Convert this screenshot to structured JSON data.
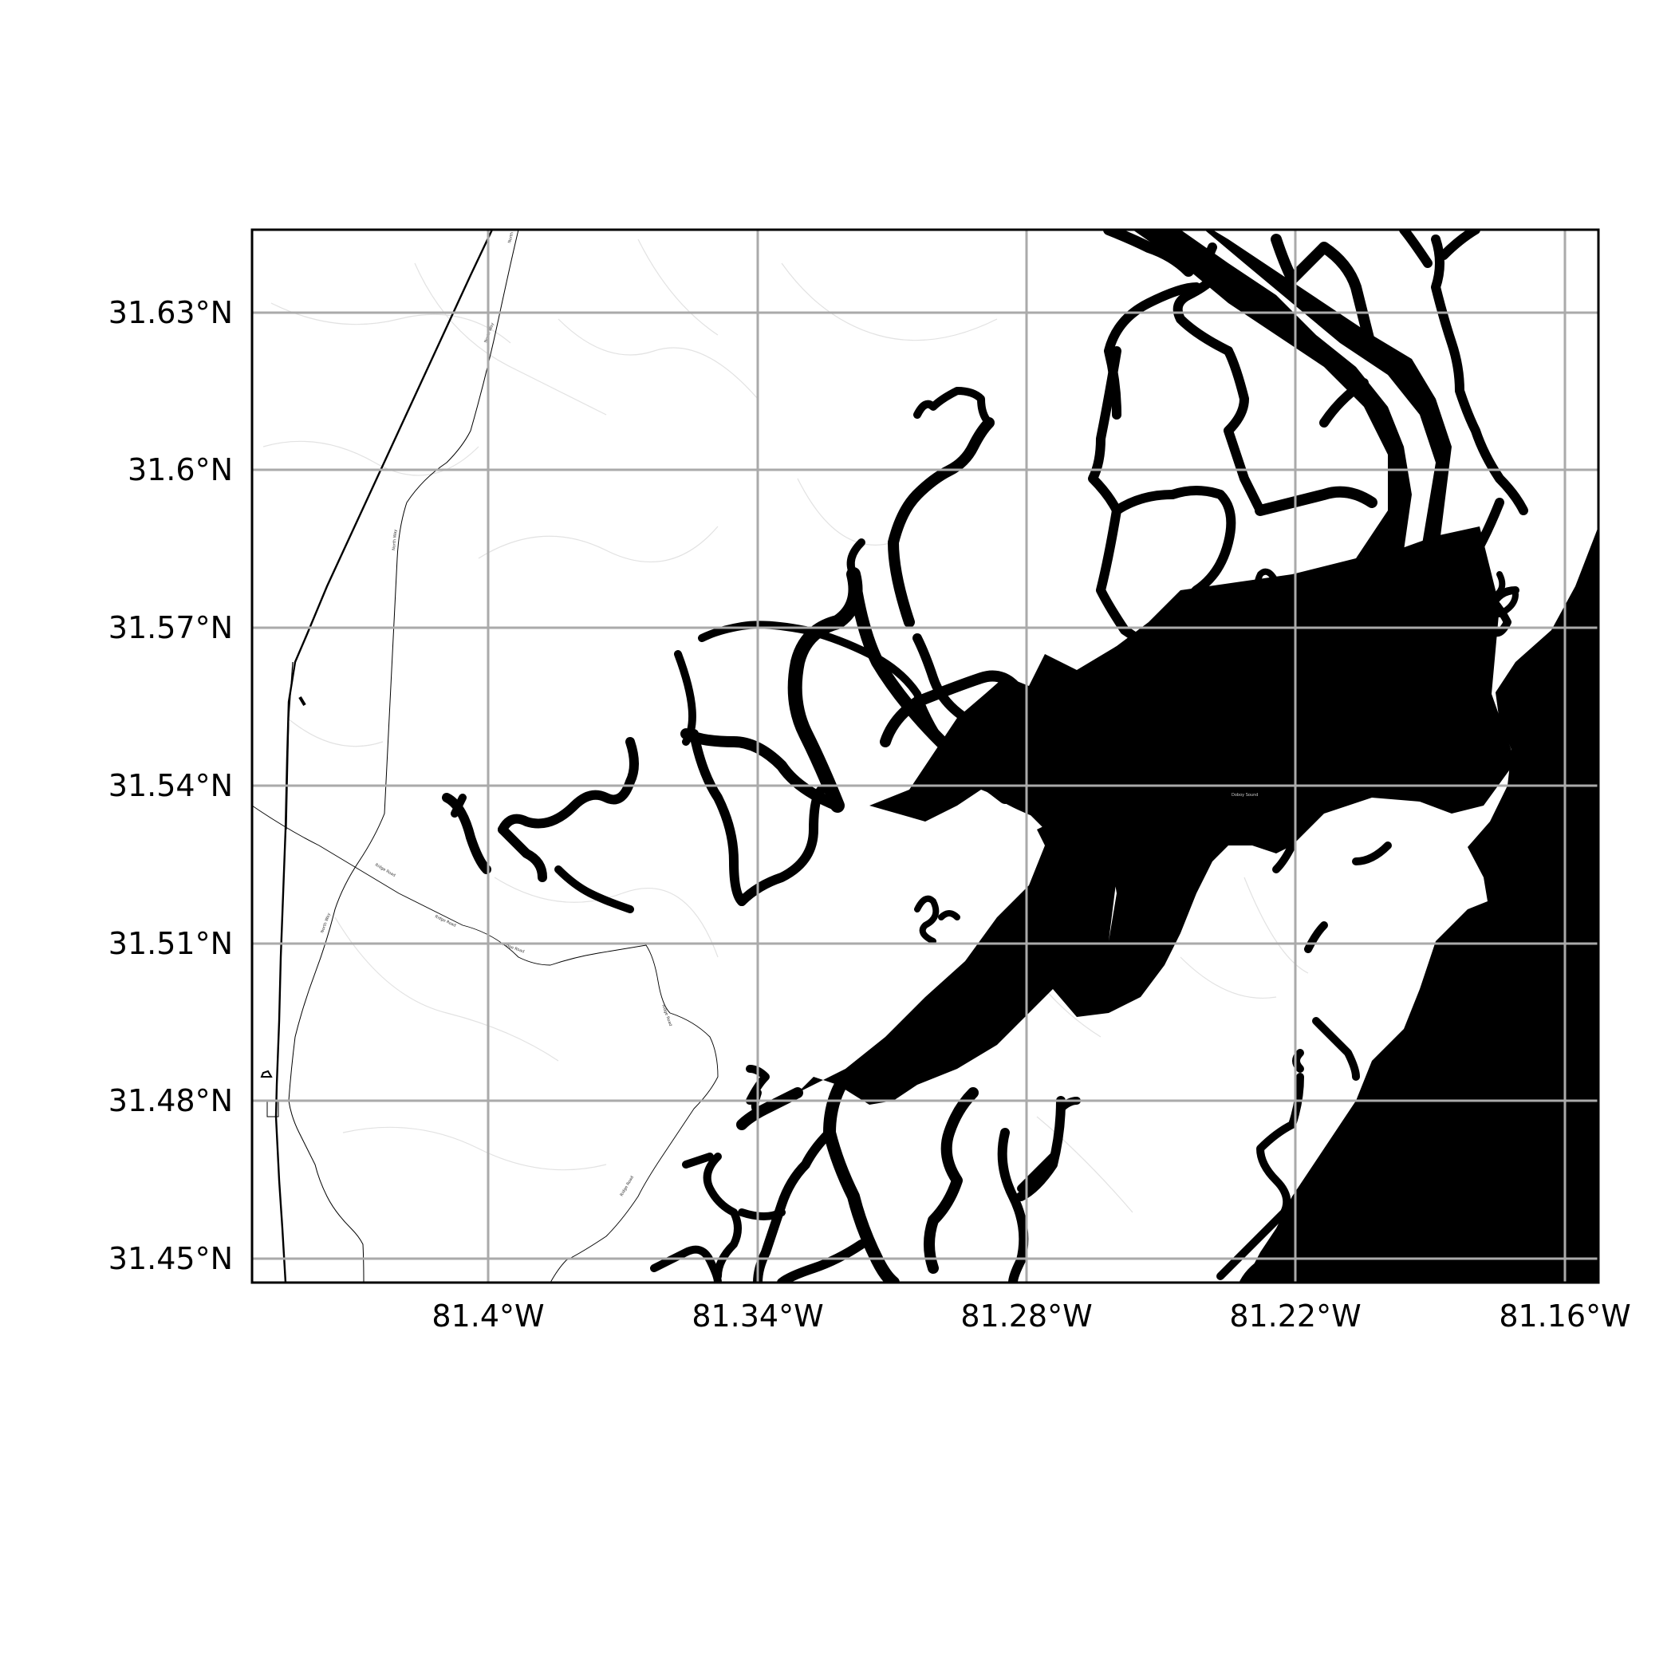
{
  "map": {
    "x_ticks": [
      "81.4°W",
      "81.34°W",
      "81.28°W",
      "81.22°W",
      "81.16°W"
    ],
    "y_ticks": [
      "31.63°N",
      "31.6°N",
      "31.57°N",
      "31.54°N",
      "31.51°N",
      "31.48°N",
      "31.45°N"
    ],
    "grid": true,
    "road_labels": [
      "North Way",
      "North Way",
      "North Way",
      "North Way",
      "Ridge Road",
      "Ridge Road",
      "Ridge Road",
      "Ridge Road",
      "Ridge Road"
    ],
    "water_label": "Doboy Sound",
    "colors": {
      "water": "#000000",
      "land": "#ffffff",
      "grid": "#aaaaaa",
      "roads": "#000000",
      "minor_roads": "#dddddd"
    }
  }
}
